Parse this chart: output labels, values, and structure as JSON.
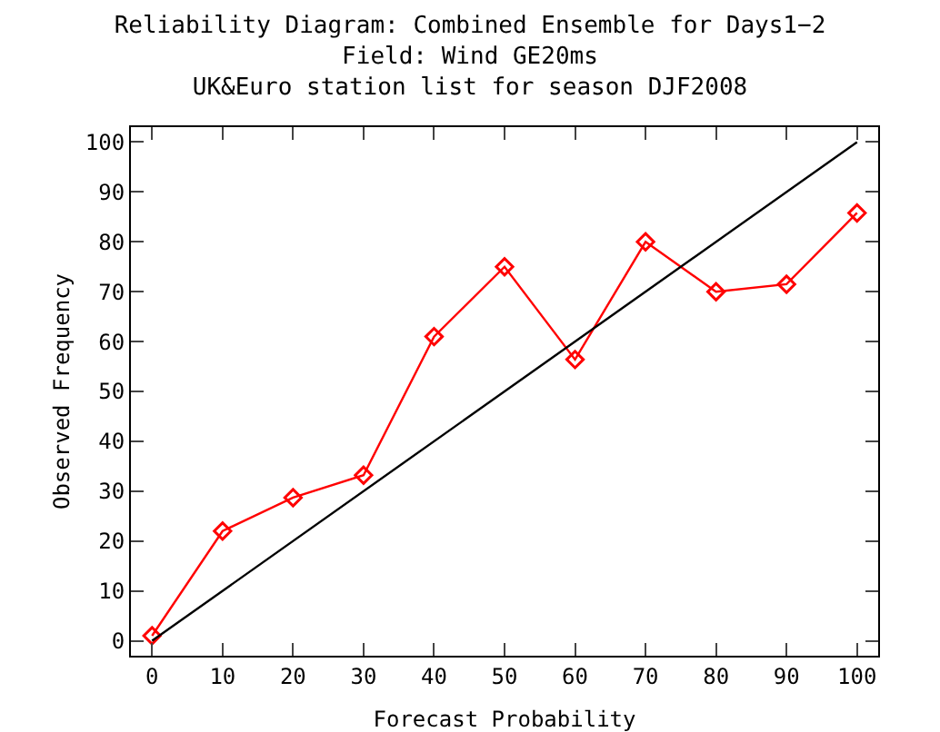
{
  "chart_data": {
    "type": "line",
    "title": "Reliability Diagram: Combined Ensemble for Days1−2\nField: Wind GE20ms\nUK&Euro station list for season DJF2008",
    "xlabel": "Forecast Probability",
    "ylabel": "Observed Frequency",
    "x": [
      0,
      10,
      20,
      30,
      40,
      50,
      60,
      70,
      80,
      90,
      100
    ],
    "series": [
      {
        "color": "#ff0000",
        "values": [
          1,
          22,
          28.7,
          33.2,
          61,
          75,
          56.4,
          80,
          70,
          71.5,
          85.8
        ],
        "marker": "diamond"
      },
      {
        "color": "#000000",
        "x": [
          0,
          100
        ],
        "values": [
          0,
          100
        ],
        "marker": "none"
      }
    ],
    "xlim": [
      -3,
      103
    ],
    "ylim": [
      -3,
      103
    ],
    "xticks": [
      0,
      10,
      20,
      30,
      40,
      50,
      60,
      70,
      80,
      90,
      100
    ],
    "yticks": [
      0,
      10,
      20,
      30,
      40,
      50,
      60,
      70,
      80,
      90,
      100
    ]
  }
}
